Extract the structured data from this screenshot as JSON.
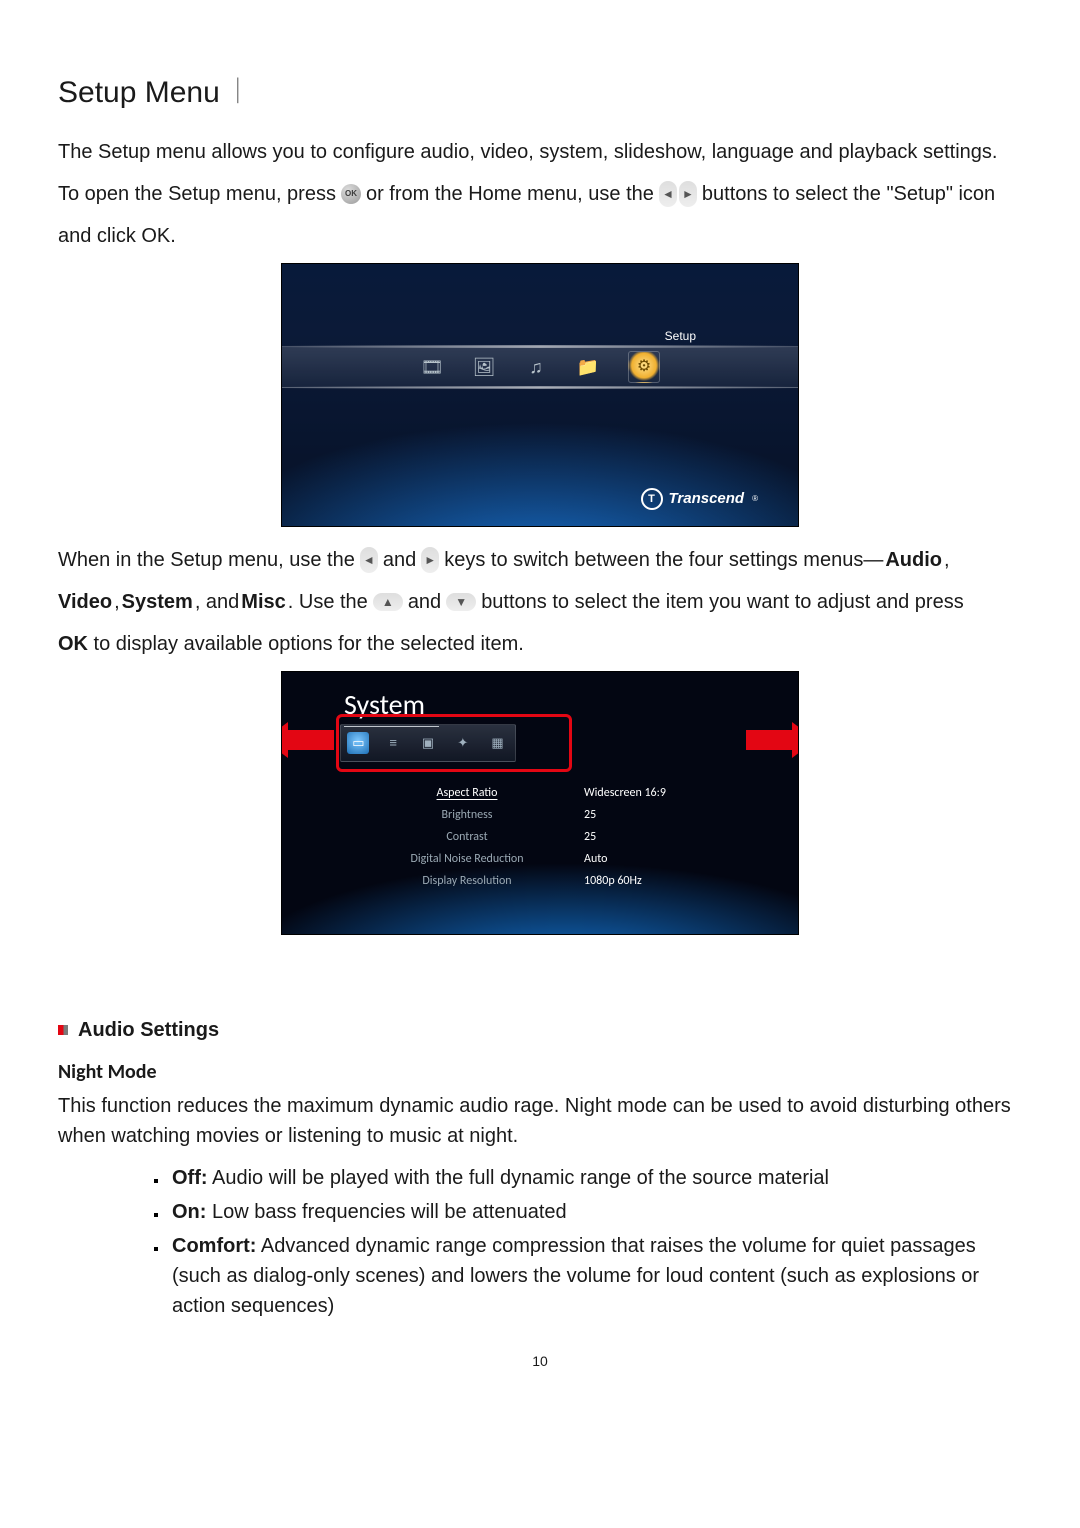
{
  "title": "Setup Menu",
  "title_divider": "︱",
  "intro_line1": "The Setup menu allows you to configure audio, video, system, slideshow, language and playback settings.",
  "intro_line2_a": "To open the Setup menu, press",
  "intro_line2_b": "or from the Home menu, use the",
  "intro_line2_c": "buttons to select the \"Setup\" icon",
  "intro_line3": "and click OK.",
  "ss1": {
    "setup_label": "Setup",
    "brand": "Transcend",
    "brand_mark": "T",
    "reg": "®",
    "icons": [
      "🎞",
      "🖼",
      "♫",
      "📁"
    ],
    "selected_glyph": "⚙"
  },
  "mid_para": {
    "a": "When in the Setup menu, use the",
    "b": "and",
    "c": "keys to switch between the four settings menus—",
    "audio": "Audio",
    "video": "Video",
    "system": "System",
    "misc": "Misc",
    "d": ", ",
    "e": ", and ",
    "f": ". Use the",
    "g": "and",
    "h": "buttons to select the item you want to adjust and press",
    "ok": "OK",
    "i": " to display available options for the selected item."
  },
  "ss2": {
    "title": "System",
    "tab_icons": [
      "▭",
      "≡",
      "▣",
      "✦",
      "▦"
    ],
    "rows": [
      {
        "label": "Aspect Ratio",
        "value": "Widescreen 16:9",
        "selected": true
      },
      {
        "label": "Brightness",
        "value": "25",
        "selected": false
      },
      {
        "label": "Contrast",
        "value": "25",
        "selected": false
      },
      {
        "label": "Digital Noise Reduction",
        "value": "Auto",
        "selected": false
      },
      {
        "label": "Display Resolution",
        "value": "1080p 60Hz",
        "selected": false
      }
    ]
  },
  "audio_section": {
    "heading": "Audio Settings",
    "subhead": "Night Mode",
    "desc": "This function reduces the maximum dynamic audio rage. Night mode can be used to avoid disturbing others when watching movies or listening to music at night.",
    "opts": [
      {
        "k": "Off:",
        "v": " Audio will be played with the full dynamic range of the source material"
      },
      {
        "k": "On:",
        "v": " Low bass frequencies will be attenuated"
      },
      {
        "k": "Comfort:",
        "v": " Advanced dynamic range compression that raises the volume for quiet passages (such as dialog-only scenes) and lowers the volume for loud content (such as explosions or action sequences)"
      }
    ]
  },
  "page_number": "10",
  "colors": {
    "accent_red": "#e30613",
    "text": "#1a1a1a"
  }
}
